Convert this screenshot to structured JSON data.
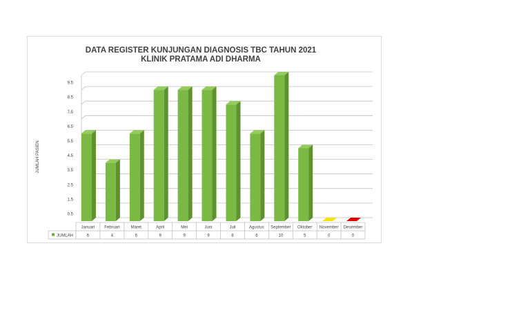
{
  "chart_data": {
    "type": "bar",
    "title_lines": [
      "DATA REGISTER KUNJUNGAN DIAGNOSIS TBC TAHUN 2021",
      "KLINIK PRATAMA ADI DHARMA"
    ],
    "ylabel": "JUMLAH PASIEN",
    "xlabel": "",
    "yticks": [
      "0.5",
      "1.5",
      "2.5",
      "3.5",
      "4.5",
      "5.5",
      "6.5",
      "7.5",
      "8.5",
      "9.5"
    ],
    "ylim": [
      0,
      10.5
    ],
    "grid": true,
    "legend": "data-table-left",
    "categories": [
      "Januari",
      "Februari",
      "Maret",
      "April",
      "Mei",
      "Juni",
      "Juli",
      "Agustus",
      "September",
      "Oktober",
      "November",
      "Desember"
    ],
    "series": [
      {
        "name": "JUMLAH",
        "values": [
          6,
          4,
          6,
          9,
          9,
          9,
          8,
          6,
          10,
          5,
          0,
          0
        ],
        "display": [
          "6",
          "4",
          "6",
          "9",
          "9",
          "9",
          "8",
          "6",
          "10",
          "5",
          "0",
          "0"
        ]
      }
    ],
    "colors": {
      "bar": "#7cb944",
      "bar_top": "#93cc5c",
      "bar_side": "#5e9230",
      "november_marker": "#f2e600",
      "desember_marker": "#e00000",
      "grid": "#bfbfbf",
      "text": "#404040",
      "legend_swatch": "#70ad47"
    }
  }
}
